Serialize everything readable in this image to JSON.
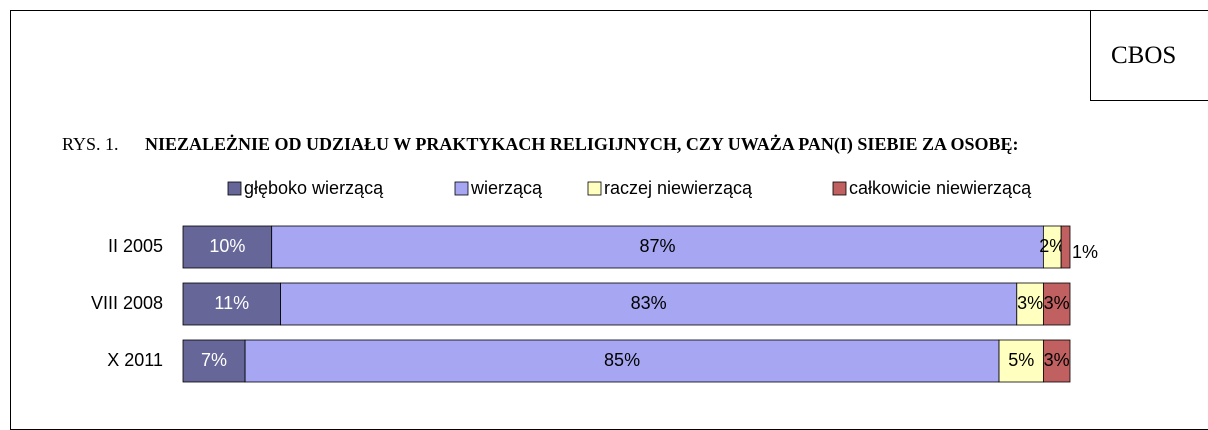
{
  "chart_data": {
    "type": "stacked-bar-horizontal",
    "source": "CBOS",
    "figure_label": "RYS. 1.",
    "title": "NIEZALEŻNIE OD UDZIAŁU W PRAKTYKACH RELIGIJNYCH, CZY UWAŻA PAN(I) SIEBIE ZA OSOBĘ:",
    "categories": [
      "II 2005",
      "VIII 2008",
      "X 2011"
    ],
    "xlim": [
      0,
      100
    ],
    "series": [
      {
        "name": "głęboko wierzącą",
        "color": "#666699",
        "values": [
          10,
          11,
          7
        ],
        "value_labels": [
          "10%",
          "11%",
          "7%"
        ]
      },
      {
        "name": "wierzącą",
        "color": "#a6a6f2",
        "values": [
          87,
          83,
          85
        ],
        "value_labels": [
          "87%",
          "83%",
          "85%"
        ]
      },
      {
        "name": "raczej niewierzącą",
        "color": "#ffffc0",
        "values": [
          2,
          3,
          5
        ],
        "value_labels": [
          "2%",
          "3%",
          "5%"
        ]
      },
      {
        "name": "całkowicie niewierzącą",
        "color": "#c06060",
        "values": [
          1,
          3,
          3
        ],
        "value_labels": [
          "1%",
          "3%",
          "3%"
        ]
      }
    ]
  }
}
